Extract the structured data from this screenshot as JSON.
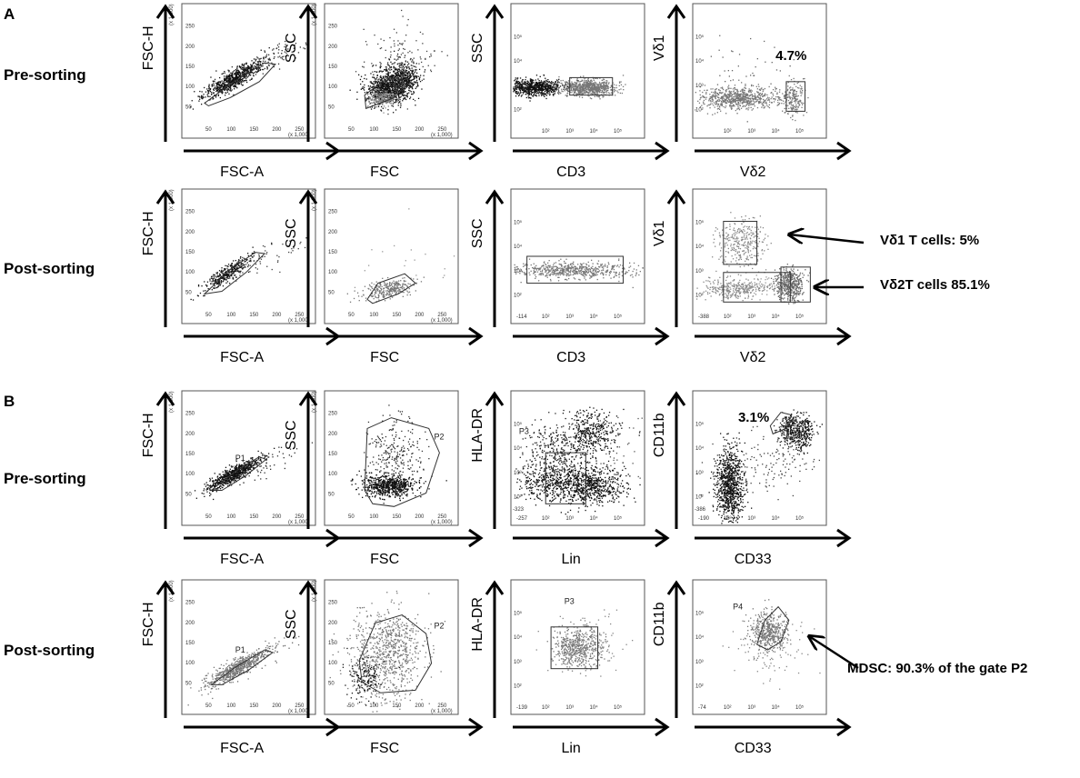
{
  "panels": {
    "A": "A",
    "B": "B"
  },
  "rows": {
    "pre": "Pre-sorting",
    "post": "Post-sorting"
  },
  "axes": {
    "fsc_a": "FSC-A",
    "fsc_h": "FSC-H",
    "fsc": "FSC",
    "ssc": "SSC",
    "cd3": "CD3",
    "vd1": "Vδ1",
    "vd2": "Vδ2",
    "hla_dr": "HLA-DR",
    "lin": "Lin",
    "cd11b": "CD11b",
    "cd33": "CD33"
  },
  "scale_note": "(x 1,000)",
  "linear_ticks": [
    "50",
    "100",
    "150",
    "200",
    "250"
  ],
  "log_ticks": [
    "10²",
    "10³",
    "10⁴",
    "10⁵"
  ],
  "gates": {
    "p1": "P1",
    "p2": "P2",
    "p3": "P3",
    "p4": "P4"
  },
  "axis_min": {
    "cd3_post": "-114",
    "vd2_post": "-388",
    "lin_pre": "-257",
    "hla_pre": "-323",
    "cd33_pre": "-190",
    "cd11b_pre": "-386",
    "lin_post": "-139",
    "cd33_post": "-74"
  },
  "percentages": {
    "vd2_pre": "4.7%",
    "cd11b_pre": "3.1%"
  },
  "annotations": {
    "vd1_t": "Vδ1 T cells: 5%",
    "vd2_t": "Vδ2T cells 85.1%",
    "mdsc": "MDSC: 90.3% of  the gate P2"
  }
}
